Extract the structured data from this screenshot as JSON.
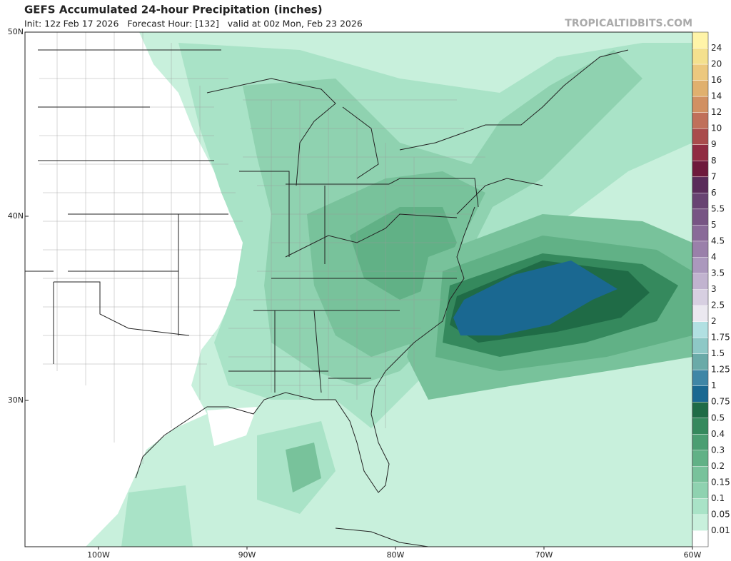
{
  "header": {
    "title": "GEFS Accumulated 24-hour Precipitation (inches)",
    "subtitle": "Init: 12z Feb 17 2026   Forecast Hour: [132]   valid at 00z Mon, Feb 23 2026",
    "watermark": "TROPICALTIDBITS.COM"
  },
  "map": {
    "lat_labels": [
      "50N",
      "40N",
      "30N"
    ],
    "lon_labels": [
      "100W",
      "90W",
      "80W",
      "70W",
      "60W"
    ]
  },
  "colorbar": {
    "levels": [
      0.01,
      0.05,
      0.1,
      0.15,
      0.2,
      0.3,
      0.4,
      0.5,
      0.75,
      1,
      1.25,
      1.5,
      1.75,
      2,
      2.5,
      3,
      3.5,
      4,
      4.5,
      5,
      5.5,
      6,
      7,
      8,
      9,
      10,
      12,
      14,
      16,
      20,
      24
    ],
    "colors": [
      "#ffffff",
      "#c8f0dc",
      "#a9e3c7",
      "#8fd2b0",
      "#78c29b",
      "#61b186",
      "#4b9e72",
      "#35895d",
      "#1f6b46",
      "#1a6891",
      "#3f86a6",
      "#6aaaa8",
      "#8ec8c6",
      "#b1e0e2",
      "#ebe8f0",
      "#d7cfe1",
      "#c1b3cf",
      "#ab98bd",
      "#9a80aa",
      "#896a98",
      "#775584",
      "#684372",
      "#5a2c5a",
      "#6e1a3c",
      "#902c42",
      "#a94c4c",
      "#c0705a",
      "#d19062",
      "#e0b06e",
      "#ecc87e",
      "#f4e08e",
      "#fff4a8"
    ]
  }
}
